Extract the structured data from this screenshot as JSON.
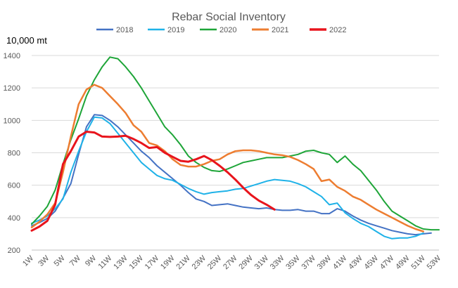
{
  "chart_data": {
    "type": "line",
    "title": "Rebar Social Inventory",
    "unit_label": "10,000 mt",
    "xlabel": "",
    "ylabel": "",
    "ylim": [
      200,
      1400
    ],
    "y_ticks": [
      "200",
      "400",
      "600",
      "800",
      "1000",
      "1200",
      "1400"
    ],
    "x_ticks": [
      "1W",
      "3W",
      "5W",
      "7W",
      "9W",
      "11W",
      "13W",
      "15W",
      "17W",
      "19W",
      "21W",
      "23W",
      "25W",
      "27W",
      "29W",
      "31W",
      "33W",
      "35W",
      "37W",
      "39W",
      "41W",
      "43W",
      "45W",
      "47W",
      "49W",
      "51W",
      "53W"
    ],
    "grid": "horizontal",
    "legend_position": "top",
    "series": [
      {
        "name": "2018",
        "color": "#4472c4",
        "width": 2,
        "points": [
          [
            1,
            350
          ],
          [
            2,
            370
          ],
          [
            3,
            395
          ],
          [
            4,
            440
          ],
          [
            5,
            520
          ],
          [
            6,
            610
          ],
          [
            7,
            790
          ],
          [
            8,
            960
          ],
          [
            9,
            1035
          ],
          [
            10,
            1030
          ],
          [
            11,
            1000
          ],
          [
            12,
            960
          ],
          [
            13,
            910
          ],
          [
            14,
            860
          ],
          [
            15,
            810
          ],
          [
            16,
            770
          ],
          [
            17,
            720
          ],
          [
            18,
            680
          ],
          [
            19,
            640
          ],
          [
            20,
            600
          ],
          [
            21,
            555
          ],
          [
            22,
            515
          ],
          [
            23,
            500
          ],
          [
            24,
            475
          ],
          [
            25,
            480
          ],
          [
            26,
            485
          ],
          [
            27,
            475
          ],
          [
            28,
            465
          ],
          [
            29,
            460
          ],
          [
            30,
            455
          ],
          [
            31,
            460
          ],
          [
            32,
            450
          ],
          [
            33,
            445
          ],
          [
            34,
            445
          ],
          [
            35,
            450
          ],
          [
            36,
            440
          ],
          [
            37,
            440
          ],
          [
            38,
            425
          ],
          [
            39,
            425
          ],
          [
            40,
            455
          ],
          [
            41,
            440
          ],
          [
            42,
            410
          ],
          [
            43,
            385
          ],
          [
            44,
            365
          ],
          [
            45,
            350
          ],
          [
            46,
            335
          ],
          [
            47,
            320
          ],
          [
            48,
            310
          ],
          [
            49,
            300
          ],
          [
            50,
            295
          ],
          [
            51,
            300
          ],
          [
            52,
            305
          ]
        ]
      },
      {
        "name": "2019",
        "color": "#1fb2e8",
        "width": 2,
        "points": [
          [
            1,
            365
          ],
          [
            2,
            385
          ],
          [
            3,
            410
          ],
          [
            4,
            455
          ],
          [
            5,
            515
          ],
          [
            6,
            680
          ],
          [
            7,
            810
          ],
          [
            8,
            930
          ],
          [
            9,
            1020
          ],
          [
            10,
            1015
          ],
          [
            11,
            980
          ],
          [
            12,
            920
          ],
          [
            13,
            860
          ],
          [
            14,
            800
          ],
          [
            15,
            740
          ],
          [
            16,
            700
          ],
          [
            17,
            660
          ],
          [
            18,
            640
          ],
          [
            19,
            630
          ],
          [
            20,
            605
          ],
          [
            21,
            580
          ],
          [
            22,
            560
          ],
          [
            23,
            545
          ],
          [
            24,
            555
          ],
          [
            25,
            560
          ],
          [
            26,
            565
          ],
          [
            27,
            575
          ],
          [
            28,
            580
          ],
          [
            29,
            595
          ],
          [
            30,
            610
          ],
          [
            31,
            625
          ],
          [
            32,
            635
          ],
          [
            33,
            630
          ],
          [
            34,
            625
          ],
          [
            35,
            610
          ],
          [
            36,
            590
          ],
          [
            37,
            560
          ],
          [
            38,
            530
          ],
          [
            39,
            480
          ],
          [
            40,
            490
          ],
          [
            41,
            430
          ],
          [
            42,
            395
          ],
          [
            43,
            365
          ],
          [
            44,
            345
          ],
          [
            45,
            315
          ],
          [
            46,
            285
          ],
          [
            47,
            270
          ],
          [
            48,
            275
          ],
          [
            49,
            275
          ],
          [
            50,
            285
          ],
          [
            51,
            305
          ]
        ]
      },
      {
        "name": "2020",
        "color": "#1ea538",
        "width": 2,
        "points": [
          [
            1,
            360
          ],
          [
            2,
            410
          ],
          [
            3,
            470
          ],
          [
            4,
            570
          ],
          [
            5,
            730
          ],
          [
            6,
            880
          ],
          [
            7,
            1010
          ],
          [
            8,
            1150
          ],
          [
            9,
            1250
          ],
          [
            10,
            1330
          ],
          [
            11,
            1390
          ],
          [
            12,
            1380
          ],
          [
            13,
            1330
          ],
          [
            14,
            1270
          ],
          [
            15,
            1200
          ],
          [
            16,
            1120
          ],
          [
            17,
            1040
          ],
          [
            18,
            960
          ],
          [
            19,
            910
          ],
          [
            20,
            850
          ],
          [
            21,
            780
          ],
          [
            22,
            740
          ],
          [
            23,
            710
          ],
          [
            24,
            690
          ],
          [
            25,
            685
          ],
          [
            26,
            700
          ],
          [
            27,
            720
          ],
          [
            28,
            740
          ],
          [
            29,
            750
          ],
          [
            30,
            760
          ],
          [
            31,
            770
          ],
          [
            32,
            770
          ],
          [
            33,
            770
          ],
          [
            34,
            780
          ],
          [
            35,
            790
          ],
          [
            36,
            810
          ],
          [
            37,
            815
          ],
          [
            38,
            800
          ],
          [
            39,
            790
          ],
          [
            40,
            740
          ],
          [
            41,
            780
          ],
          [
            42,
            730
          ],
          [
            43,
            690
          ],
          [
            44,
            630
          ],
          [
            45,
            570
          ],
          [
            46,
            500
          ],
          [
            47,
            440
          ],
          [
            48,
            410
          ],
          [
            49,
            380
          ],
          [
            50,
            350
          ],
          [
            51,
            330
          ],
          [
            52,
            325
          ],
          [
            53,
            325
          ]
        ]
      },
      {
        "name": "2021",
        "color": "#ed7d31",
        "width": 2.5,
        "points": [
          [
            1,
            340
          ],
          [
            2,
            375
          ],
          [
            3,
            420
          ],
          [
            4,
            490
          ],
          [
            5,
            680
          ],
          [
            6,
            900
          ],
          [
            7,
            1100
          ],
          [
            8,
            1190
          ],
          [
            9,
            1220
          ],
          [
            10,
            1200
          ],
          [
            11,
            1150
          ],
          [
            12,
            1100
          ],
          [
            13,
            1045
          ],
          [
            14,
            970
          ],
          [
            15,
            930
          ],
          [
            16,
            860
          ],
          [
            17,
            845
          ],
          [
            18,
            810
          ],
          [
            19,
            760
          ],
          [
            20,
            725
          ],
          [
            21,
            715
          ],
          [
            22,
            715
          ],
          [
            23,
            730
          ],
          [
            24,
            750
          ],
          [
            25,
            760
          ],
          [
            26,
            790
          ],
          [
            27,
            810
          ],
          [
            28,
            815
          ],
          [
            29,
            815
          ],
          [
            30,
            810
          ],
          [
            31,
            800
          ],
          [
            32,
            790
          ],
          [
            33,
            785
          ],
          [
            34,
            775
          ],
          [
            35,
            755
          ],
          [
            36,
            730
          ],
          [
            37,
            700
          ],
          [
            38,
            625
          ],
          [
            39,
            635
          ],
          [
            40,
            590
          ],
          [
            41,
            565
          ],
          [
            42,
            530
          ],
          [
            43,
            510
          ],
          [
            44,
            480
          ],
          [
            45,
            450
          ],
          [
            46,
            425
          ],
          [
            47,
            400
          ],
          [
            48,
            375
          ],
          [
            49,
            350
          ],
          [
            50,
            330
          ],
          [
            51,
            315
          ]
        ]
      },
      {
        "name": "2022",
        "color": "#e8141c",
        "width": 3,
        "points": [
          [
            1,
            320
          ],
          [
            2,
            345
          ],
          [
            3,
            380
          ],
          [
            4,
            480
          ],
          [
            5,
            730
          ],
          [
            6,
            810
          ],
          [
            7,
            900
          ],
          [
            8,
            930
          ],
          [
            9,
            925
          ],
          [
            10,
            900
          ],
          [
            11,
            898
          ],
          [
            12,
            900
          ],
          [
            13,
            905
          ],
          [
            14,
            885
          ],
          [
            15,
            860
          ],
          [
            16,
            830
          ],
          [
            17,
            835
          ],
          [
            18,
            800
          ],
          [
            19,
            775
          ],
          [
            20,
            750
          ],
          [
            21,
            745
          ],
          [
            22,
            760
          ],
          [
            23,
            780
          ],
          [
            24,
            755
          ],
          [
            25,
            720
          ],
          [
            26,
            680
          ],
          [
            27,
            635
          ],
          [
            28,
            585
          ],
          [
            29,
            540
          ],
          [
            30,
            505
          ],
          [
            31,
            480
          ],
          [
            32,
            450
          ]
        ]
      }
    ]
  }
}
